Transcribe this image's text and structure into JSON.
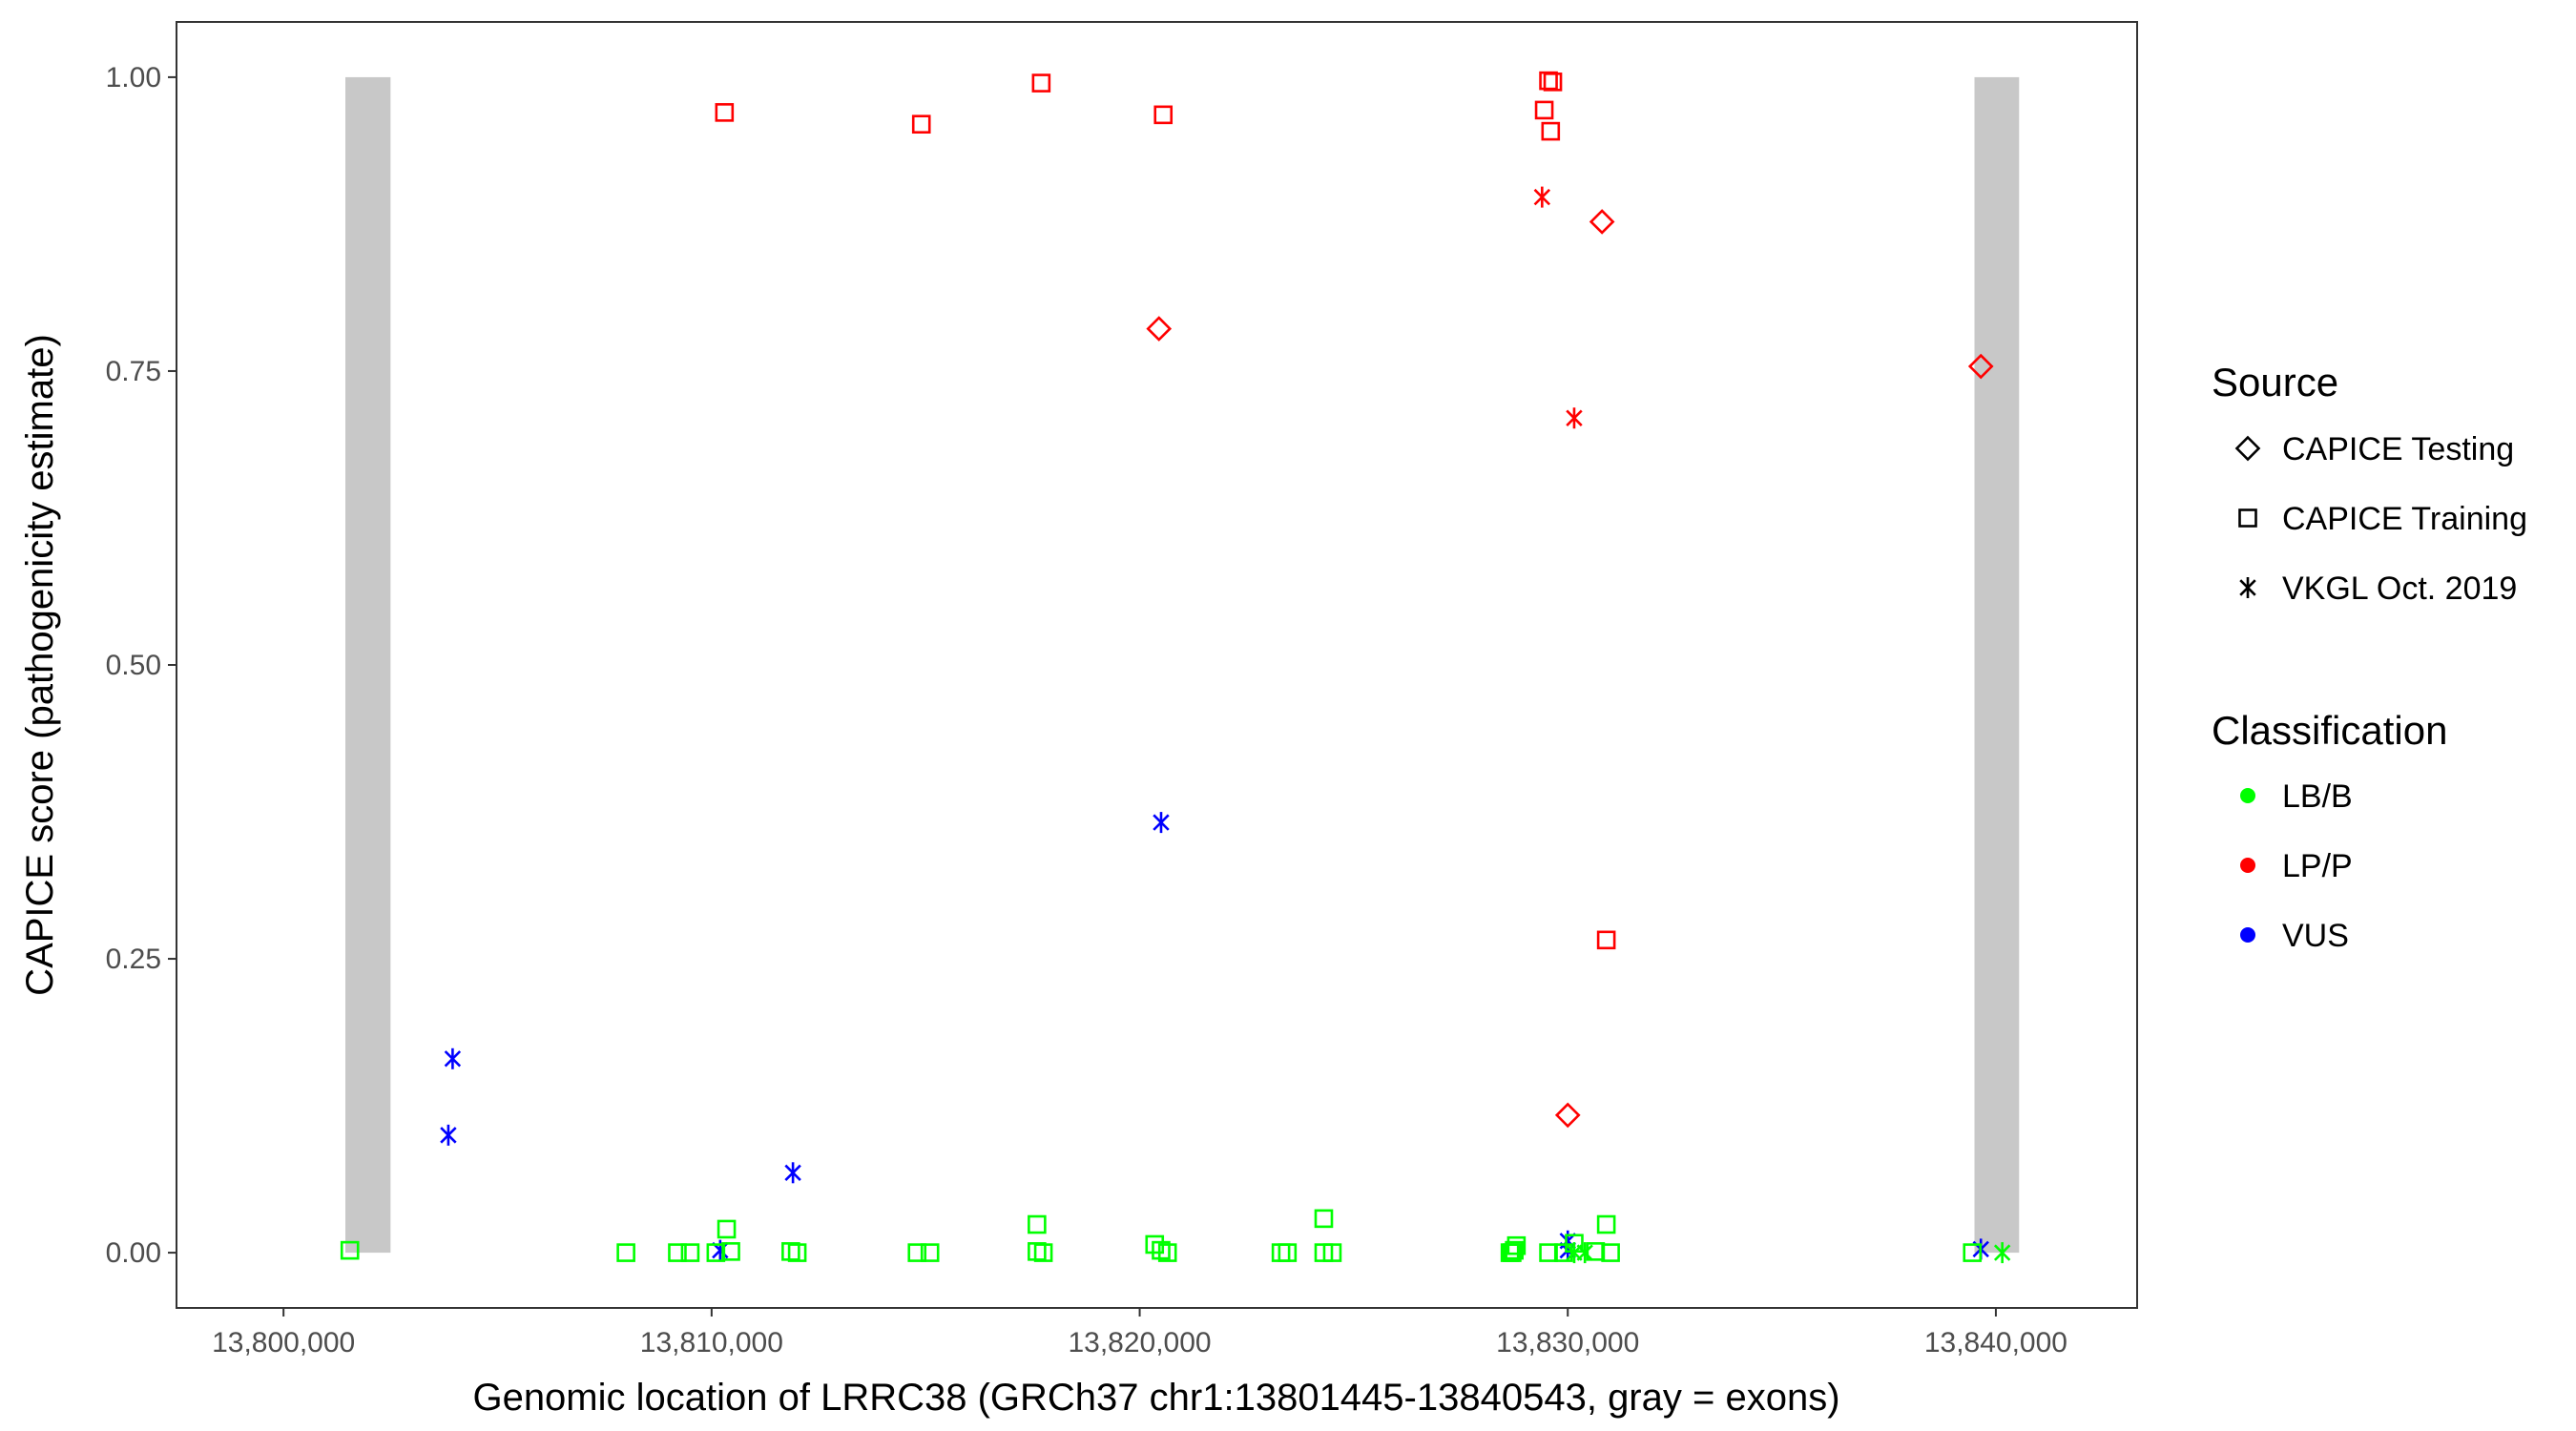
{
  "chart_data": {
    "type": "scatter",
    "xlabel": "Genomic location of LRRC38 (GRCh37 chr1:13801445-13840543, gray = exons)",
    "ylabel": "CAPICE score (pathogenicity estimate)",
    "xlim": [
      13797500,
      13843300
    ],
    "ylim": [
      -0.047,
      1.047
    ],
    "x_ticks": [
      13800000,
      13810000,
      13820000,
      13830000,
      13840000
    ],
    "x_tick_labels": [
      "13,800,000",
      "13,810,000",
      "13,820,000",
      "13,830,000",
      "13,840,000"
    ],
    "y_ticks": [
      0,
      0.25,
      0.5,
      0.75,
      1
    ],
    "y_tick_labels": [
      "0.00",
      "0.25",
      "0.50",
      "0.75",
      "1.00"
    ],
    "grid": false,
    "legend_position": "right",
    "exons": [
      {
        "start": 13801445,
        "end": 13802500
      },
      {
        "start": 13839500,
        "end": 13840543
      }
    ],
    "legend": {
      "source_title": "Source",
      "source_items": [
        {
          "label": "CAPICE Testing",
          "shape": "diamond"
        },
        {
          "label": "CAPICE Training",
          "shape": "square"
        },
        {
          "label": "VKGL Oct. 2019",
          "shape": "asterisk"
        }
      ],
      "classification_title": "Classification",
      "classification_items": [
        {
          "label": "LB/B",
          "color": "#00ff00"
        },
        {
          "label": "LP/P",
          "color": "#ff0000"
        },
        {
          "label": "VUS",
          "color": "#0000ff"
        }
      ]
    },
    "series": [
      {
        "name": "CAPICE Training",
        "classification": "LP/P",
        "shape": "square",
        "color": "#ff0000",
        "points": [
          [
            13810300,
            0.97
          ],
          [
            13814900,
            0.96
          ],
          [
            13817700,
            0.995
          ],
          [
            13820550,
            0.968
          ],
          [
            13829450,
            0.972
          ],
          [
            13829550,
            0.997
          ],
          [
            13829650,
            0.996
          ],
          [
            13829600,
            0.954
          ],
          [
            13830900,
            0.266
          ]
        ]
      },
      {
        "name": "CAPICE Testing",
        "classification": "LP/P",
        "shape": "diamond",
        "color": "#ff0000",
        "points": [
          [
            13820450,
            0.786
          ],
          [
            13830800,
            0.877
          ],
          [
            13830000,
            0.117
          ],
          [
            13839650,
            0.754
          ]
        ]
      },
      {
        "name": "VKGL Oct. 2019",
        "classification": "LP/P",
        "shape": "asterisk",
        "color": "#ff0000",
        "points": [
          [
            13829400,
            0.898
          ],
          [
            13830150,
            0.71
          ]
        ]
      },
      {
        "name": "VKGL Oct. 2019",
        "classification": "VUS",
        "shape": "asterisk",
        "color": "#0000ff",
        "points": [
          [
            13803950,
            0.165
          ],
          [
            13803850,
            0.1
          ],
          [
            13811900,
            0.068
          ],
          [
            13820500,
            0.366
          ],
          [
            13810200,
            0.002
          ],
          [
            13830000,
            0.01
          ],
          [
            13830000,
            0.002
          ],
          [
            13839650,
            0.003
          ]
        ]
      },
      {
        "name": "CAPICE Training",
        "classification": "LB/B",
        "shape": "square",
        "color": "#00ff00",
        "points": [
          [
            13801550,
            0.002
          ],
          [
            13808000,
            0.0
          ],
          [
            13809200,
            0.0
          ],
          [
            13809500,
            0.0
          ],
          [
            13810100,
            0.0
          ],
          [
            13810450,
            0.001
          ],
          [
            13810350,
            0.02
          ],
          [
            13811850,
            0.001
          ],
          [
            13812000,
            0.0
          ],
          [
            13814800,
            0.0
          ],
          [
            13815100,
            0.0
          ],
          [
            13817600,
            0.024
          ],
          [
            13817600,
            0.001
          ],
          [
            13817750,
            0.0
          ],
          [
            13820350,
            0.007
          ],
          [
            13820500,
            0.002
          ],
          [
            13820650,
            0.0
          ],
          [
            13823300,
            0.0
          ],
          [
            13823450,
            0.0
          ],
          [
            13824300,
            0.029
          ],
          [
            13824300,
            0.0
          ],
          [
            13824500,
            0.0
          ],
          [
            13828650,
            0.0
          ],
          [
            13828750,
            0.002
          ],
          [
            13828800,
            0.006
          ],
          [
            13828700,
            0.0
          ],
          [
            13829550,
            0.0
          ],
          [
            13829900,
            0.0
          ],
          [
            13830150,
            0.008
          ],
          [
            13830650,
            0.001
          ],
          [
            13830900,
            0.024
          ],
          [
            13831000,
            0.0
          ],
          [
            13839450,
            0.0
          ]
        ]
      },
      {
        "name": "VKGL Oct. 2019",
        "classification": "LB/B",
        "shape": "asterisk",
        "color": "#00ff00",
        "points": [
          [
            13830150,
            0.0
          ],
          [
            13830400,
            0.0
          ],
          [
            13840150,
            0.0
          ]
        ]
      }
    ]
  }
}
